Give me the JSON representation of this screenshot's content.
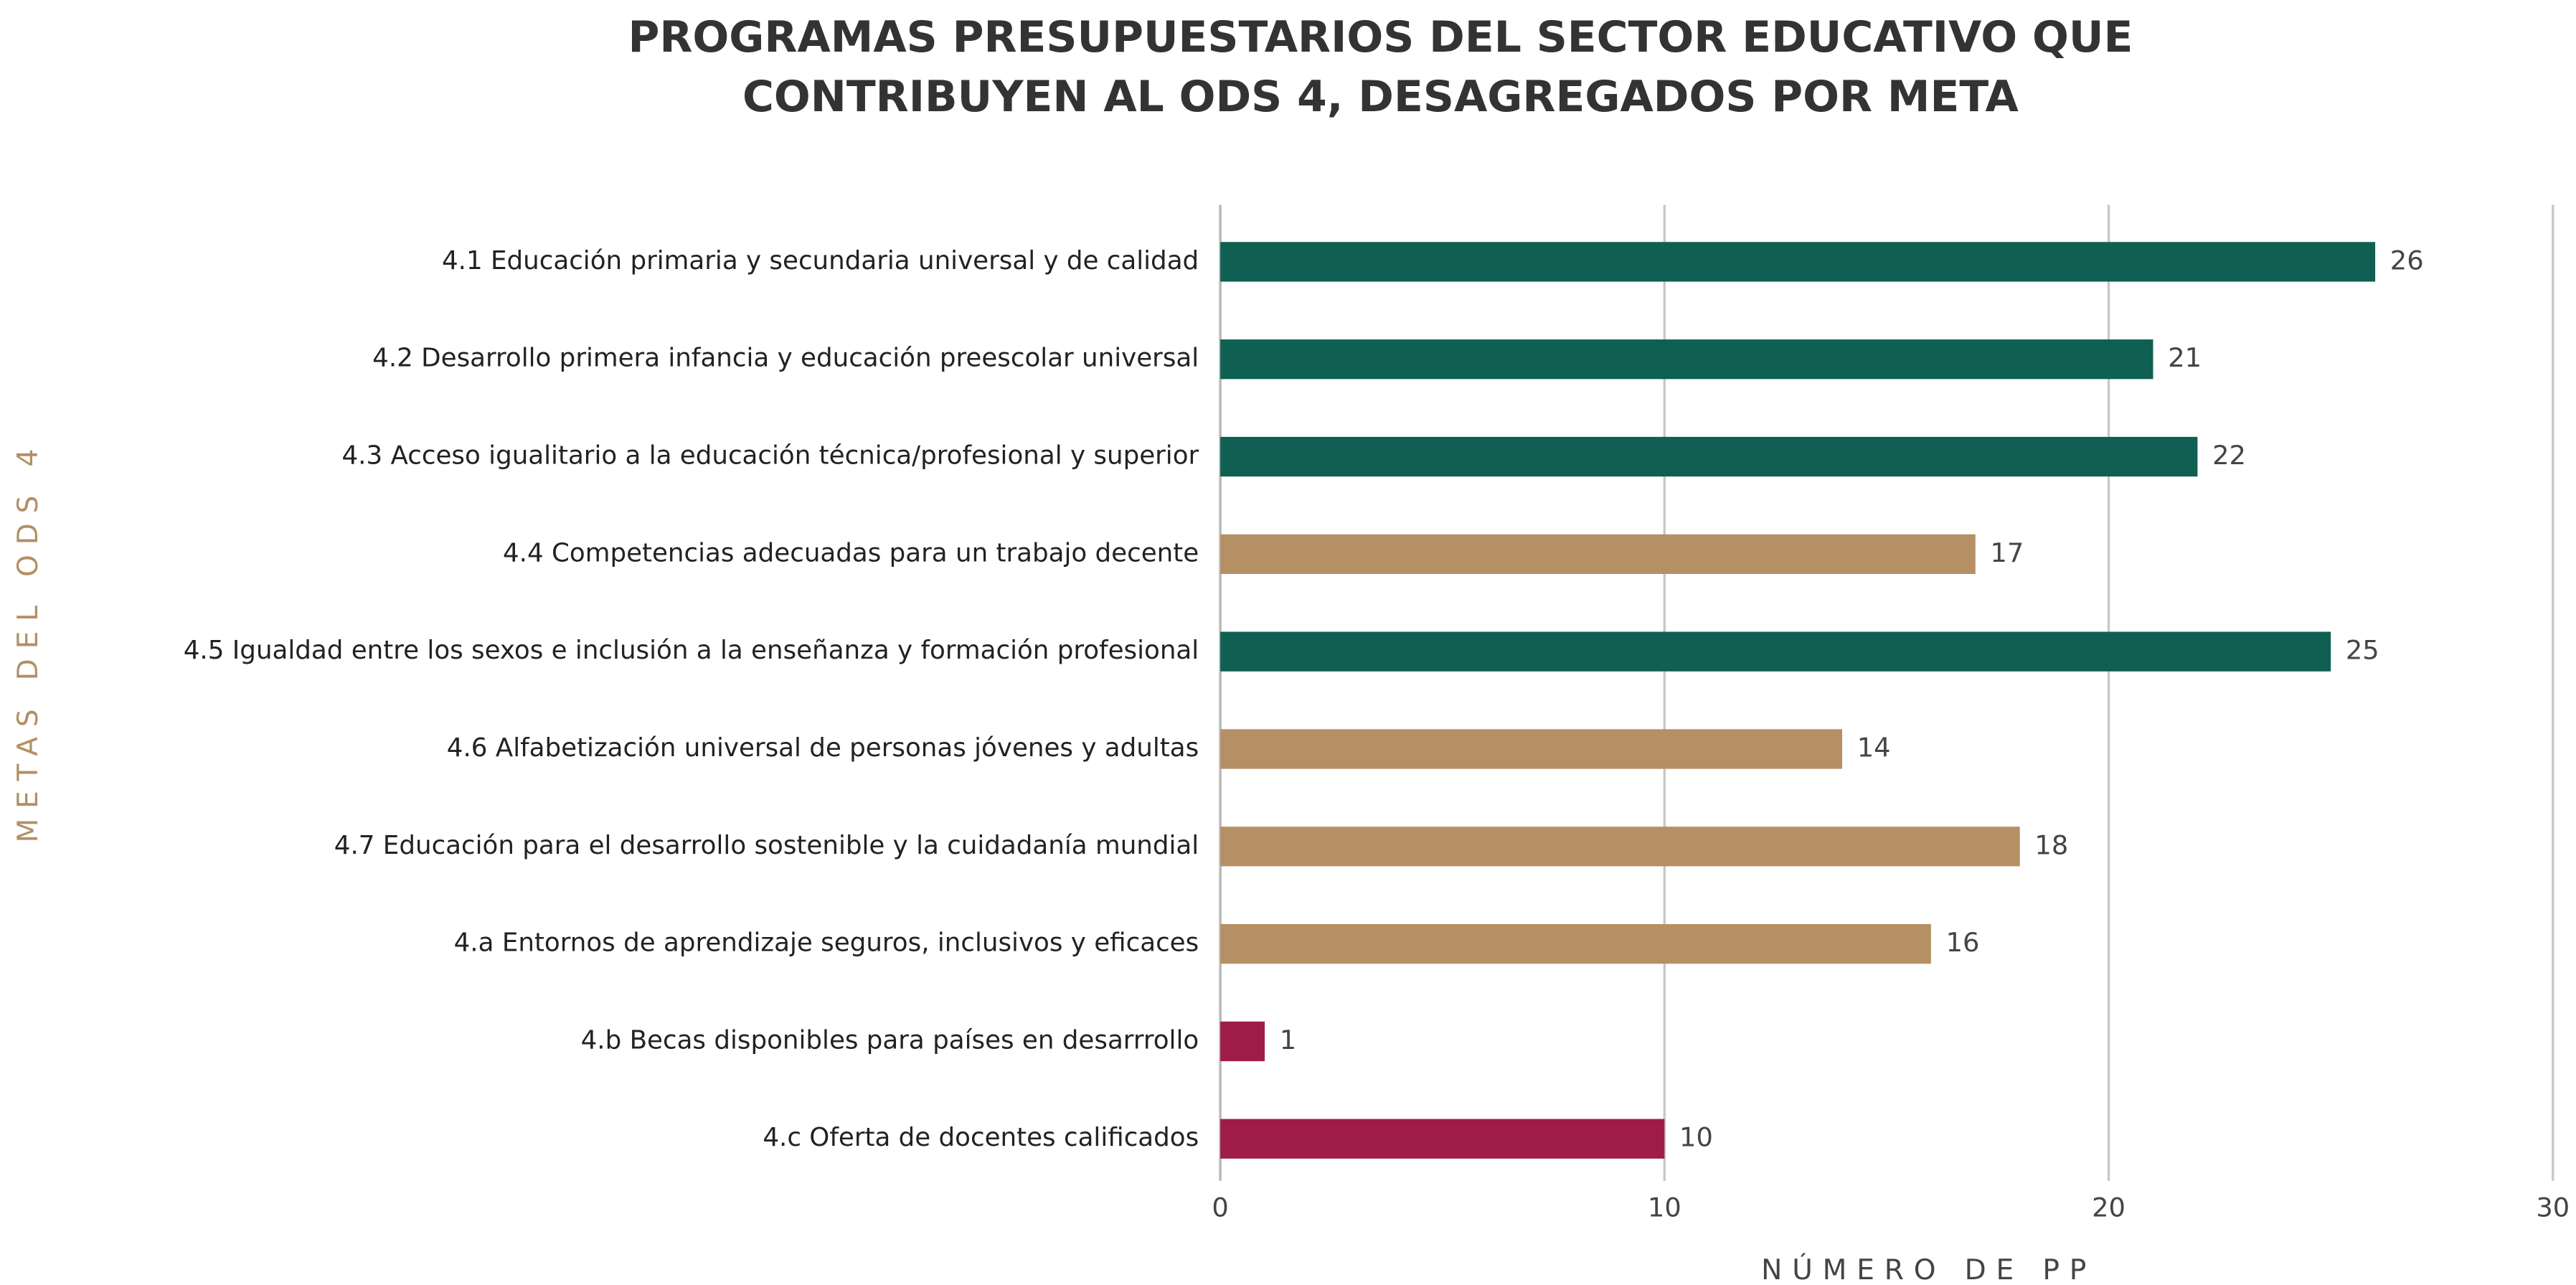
{
  "chart_data": {
    "type": "bar",
    "orientation": "horizontal",
    "title": [
      "PROGRAMAS PRESUPUESTARIOS DEL SECTOR EDUCATIVO QUE",
      "CONTRIBUYEN AL ODS 4, DESAGREGADOS POR META"
    ],
    "x_label": "NÚMERO DE PP",
    "y_label": "METAS DEL ODS 4",
    "categories": [
      "4.1 Educación primaria y secundaria universal y de calidad",
      "4.2 Desarrollo primera infancia y educación preescolar universal",
      "4.3 Acceso igualitario a la educación técnica/profesional y superior",
      "4.4 Competencias adecuadas para un trabajo decente",
      "4.5 Igualdad entre los sexos e inclusión a la enseñanza y formación profesional",
      "4.6 Alfabetización universal de personas jóvenes y adultas",
      "4.7 Educación para el desarrollo sostenible y la cuidadanía mundial",
      "4.a Entornos de aprendizaje seguros, inclusivos y eficaces",
      "4.b Becas disponibles para países en desarrrollo",
      "4.c Oferta de docentes calificados"
    ],
    "values": [
      26,
      21,
      22,
      17,
      25,
      14,
      18,
      16,
      1,
      10
    ],
    "colors": [
      "#0f5f52",
      "#0f5f52",
      "#0f5f52",
      "#b59065",
      "#0f5f52",
      "#b59065",
      "#b59065",
      "#b59065",
      "#a01c48",
      "#a01c48"
    ],
    "xlim": [
      0,
      30
    ],
    "xticks": [
      0,
      10,
      20,
      30
    ],
    "grid": true
  }
}
